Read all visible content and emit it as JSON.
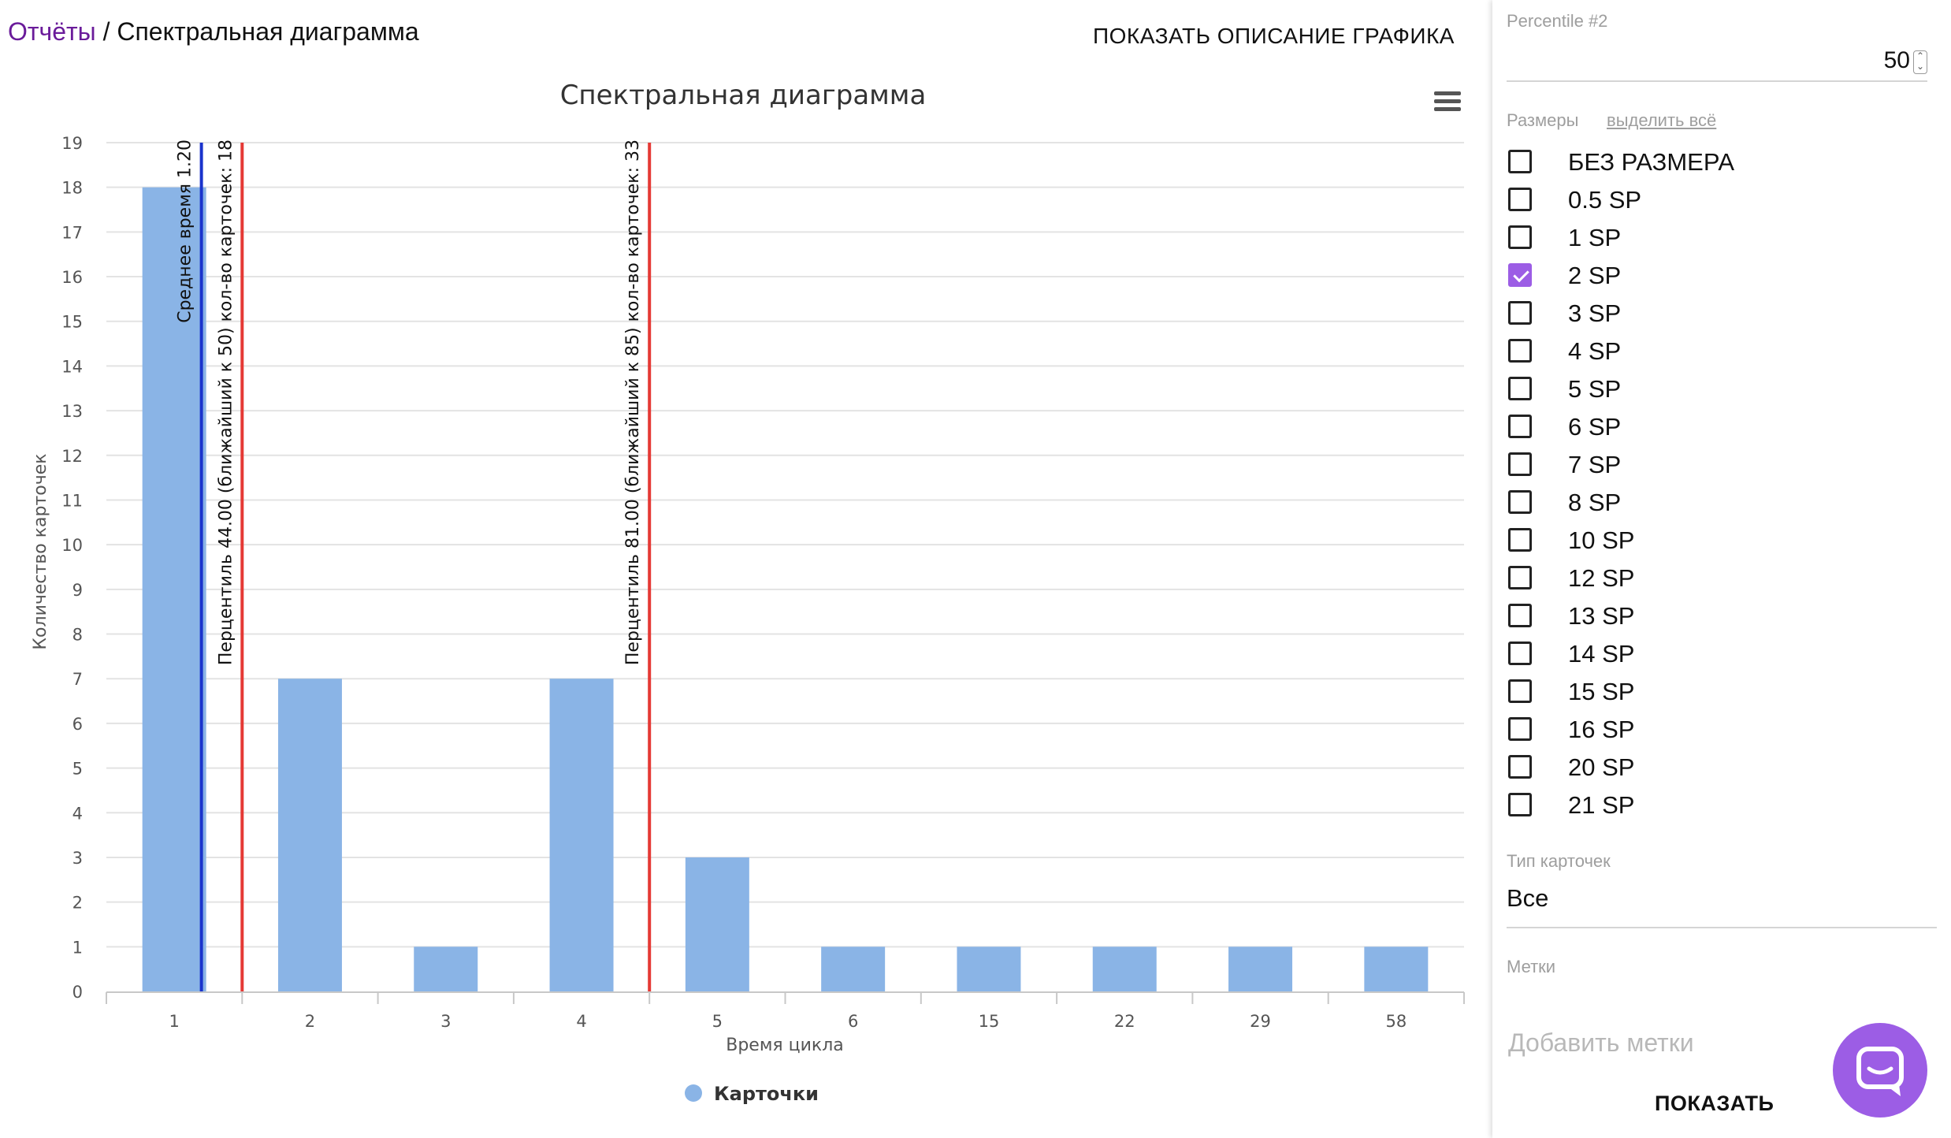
{
  "breadcrumb": {
    "link": "Отчёты",
    "separator": " / ",
    "current": "Спектральная диаграмма"
  },
  "show_description_label": "ПОКАЗАТЬ ОПИСАНИЕ ГРАФИКА",
  "chart_data": {
    "type": "bar",
    "title": "Спектральная диаграмма",
    "xlabel": "Время цикла",
    "ylabel": "Количество карточек",
    "categories": [
      "1",
      "2",
      "3",
      "4",
      "5",
      "6",
      "15",
      "22",
      "29",
      "58"
    ],
    "series": [
      {
        "name": "Карточки",
        "values": [
          18,
          7,
          1,
          7,
          3,
          1,
          1,
          1,
          1,
          1
        ],
        "color": "#8ab4e6"
      }
    ],
    "ylim": [
      0,
      19
    ],
    "yticks": [
      0,
      1,
      2,
      3,
      4,
      5,
      6,
      7,
      8,
      9,
      10,
      11,
      12,
      13,
      14,
      15,
      16,
      17,
      18,
      19
    ],
    "grid": true,
    "legend": "bottom-center",
    "plot_lines": [
      {
        "label": "Среднее время 1.20",
        "x": 1.2,
        "color": "#1a33cc"
      },
      {
        "label": "Перцентиль 44.00 (ближайший к 50) кол-во карточек: 18",
        "x": 1.5,
        "color": "#e53935"
      },
      {
        "label": "Перцентиль 81.00 (ближайший к 85) кол-во карточек: 33",
        "x": 4.5,
        "color": "#e53935"
      }
    ]
  },
  "sidebar": {
    "percentile_label": "Percentile #2",
    "percentile_value": "50",
    "sizes_label": "Размеры",
    "select_all": "выделить всё",
    "sizes": [
      {
        "label": "БЕЗ РАЗМЕРА",
        "checked": false
      },
      {
        "label": "0.5 SP",
        "checked": false
      },
      {
        "label": "1 SP",
        "checked": false
      },
      {
        "label": "2 SP",
        "checked": true
      },
      {
        "label": "3 SP",
        "checked": false
      },
      {
        "label": "4 SP",
        "checked": false
      },
      {
        "label": "5 SP",
        "checked": false
      },
      {
        "label": "6 SP",
        "checked": false
      },
      {
        "label": "7 SP",
        "checked": false
      },
      {
        "label": "8 SP",
        "checked": false
      },
      {
        "label": "10 SP",
        "checked": false
      },
      {
        "label": "12 SP",
        "checked": false
      },
      {
        "label": "13 SP",
        "checked": false
      },
      {
        "label": "14 SP",
        "checked": false
      },
      {
        "label": "15 SP",
        "checked": false
      },
      {
        "label": "16 SP",
        "checked": false
      },
      {
        "label": "20 SP",
        "checked": false
      },
      {
        "label": "21 SP",
        "checked": false
      }
    ],
    "card_type_label": "Тип карточек",
    "card_type_value": "Все",
    "tags_label": "Метки",
    "tags_placeholder": "Добавить метки",
    "show_button": "ПОКАЗАТЬ"
  },
  "colors": {
    "accent": "#9c5de5",
    "link": "#6a1b9a"
  },
  "chat_icon": "chat-icon"
}
